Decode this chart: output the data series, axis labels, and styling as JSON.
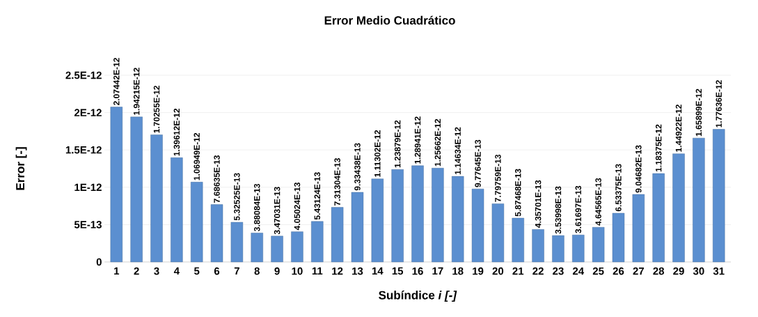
{
  "chart_data": {
    "type": "bar",
    "title": "Error Medio Cuadrático",
    "xlabel": "Subíndice *i [-]*",
    "ylabel": "Error [-]",
    "categories": [
      "1",
      "2",
      "3",
      "4",
      "5",
      "6",
      "7",
      "8",
      "9",
      "10",
      "11",
      "12",
      "13",
      "14",
      "15",
      "16",
      "17",
      "18",
      "19",
      "20",
      "21",
      "22",
      "23",
      "24",
      "25",
      "26",
      "27",
      "28",
      "29",
      "30",
      "31"
    ],
    "values": [
      2.07442e-12,
      1.94215e-12,
      1.70255e-12,
      1.39612e-12,
      1.06949e-12,
      7.68635e-13,
      5.32525e-13,
      3.88084e-13,
      3.47031e-13,
      4.05024e-13,
      5.43124e-13,
      7.31304e-13,
      9.33438e-13,
      1.11302e-12,
      1.23879e-12,
      1.28941e-12,
      1.25662e-12,
      1.14634e-12,
      9.77645e-13,
      7.79759e-13,
      5.87468e-13,
      4.35701e-13,
      3.53998e-13,
      3.61697e-13,
      4.64565e-13,
      6.53375e-13,
      9.04682e-13,
      1.18375e-12,
      1.44922e-12,
      1.65899e-12,
      1.77636e-12
    ],
    "value_labels": [
      "2.07442E-12",
      "1.94215E-12",
      "1.70255E-12",
      "1.39612E-12",
      "1.06949E-12",
      "7.68635E-13",
      "5.32525E-13",
      "3.88084E-13",
      "3.47031E-13",
      "4.05024E-13",
      "5.43124E-13",
      "7.31304E-13",
      "9.33438E-13",
      "1.11302E-12",
      "1.23879E-12",
      "1.28941E-12",
      "1.25662E-12",
      "1.14634E-12",
      "9.77645E-13",
      "7.79759E-13",
      "5.87468E-13",
      "4.35701E-13",
      "3.53998E-13",
      "3.61697E-13",
      "4.64565E-13",
      "6.53375E-13",
      "9.04682E-13",
      "1.18375E-12",
      "1.44922E-12",
      "1.65899E-12",
      "1.77636E-12"
    ],
    "color": "#5b8fd0",
    "ylim": [
      0,
      2.5e-12
    ],
    "yticks": [
      0,
      {
        "value": 5e-13,
        "label": "5E-13"
      },
      {
        "value": 1e-12,
        "label": "1E-12"
      },
      {
        "value": 1.5e-12,
        "label": "1.5E-12"
      },
      {
        "value": 2e-12,
        "label": "2E-12"
      },
      {
        "value": 2.5e-12,
        "label": "2.5E-12"
      }
    ],
    "grid": "y"
  }
}
